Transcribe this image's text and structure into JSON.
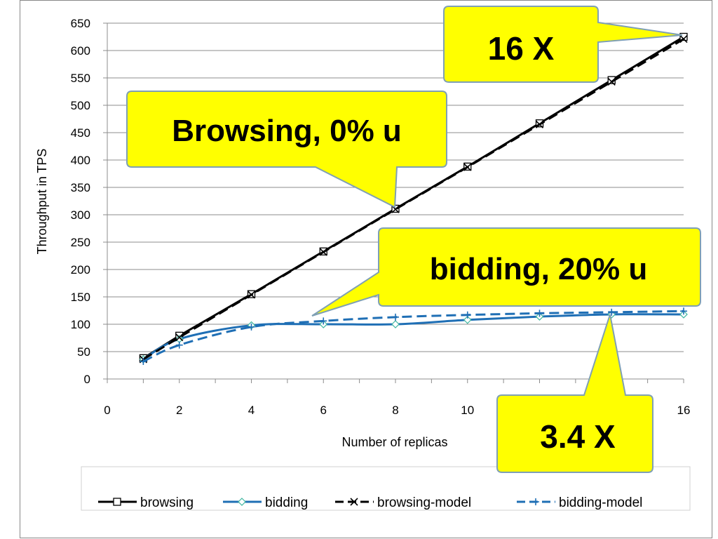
{
  "chart_data": {
    "type": "line",
    "title": "",
    "xlabel": "Number of replicas",
    "ylabel": "Throughput in TPS",
    "xlim": [
      0,
      16
    ],
    "ylim": [
      0,
      650
    ],
    "xticks": [
      0,
      2,
      4,
      6,
      8,
      10,
      16
    ],
    "yticks": [
      0,
      50,
      100,
      150,
      200,
      250,
      300,
      350,
      400,
      450,
      500,
      550,
      600,
      650
    ],
    "grid": "horizontal",
    "legend_position": "bottom",
    "series": [
      {
        "name": "browsing",
        "color": "#000000",
        "style": "solid",
        "marker": "square",
        "x": [
          1,
          2,
          4,
          6,
          8,
          10,
          12,
          14,
          16
        ],
        "y": [
          38,
          79,
          155,
          233,
          311,
          388,
          467,
          546,
          625
        ]
      },
      {
        "name": "bidding",
        "color": "#1f6fb5",
        "style": "solid",
        "marker": "diamond",
        "x": [
          1,
          2,
          4,
          6,
          8,
          10,
          12,
          14,
          16
        ],
        "y": [
          36,
          73,
          98,
          100,
          100,
          108,
          114,
          118,
          118
        ]
      },
      {
        "name": "browsing-model",
        "color": "#000000",
        "style": "dashed",
        "marker": "x",
        "x": [
          1,
          2,
          4,
          6,
          8,
          10,
          12,
          14,
          16
        ],
        "y": [
          36,
          76,
          154,
          232,
          310,
          387,
          465,
          543,
          621
        ]
      },
      {
        "name": "bidding-model",
        "color": "#1f6fb5",
        "style": "dashed",
        "marker": "plus",
        "x": [
          1,
          2,
          4,
          6,
          8,
          10,
          12,
          14,
          16
        ],
        "y": [
          32,
          62,
          95,
          106,
          113,
          117,
          120,
          122,
          124
        ]
      }
    ],
    "annotations": [
      {
        "id": "browsing",
        "text": "Browsing, 0% u"
      },
      {
        "id": "bidding",
        "text": "bidding, 20% u"
      },
      {
        "id": "scale16",
        "text": "16 X"
      },
      {
        "id": "scale34",
        "text": "3.4 X"
      }
    ]
  }
}
